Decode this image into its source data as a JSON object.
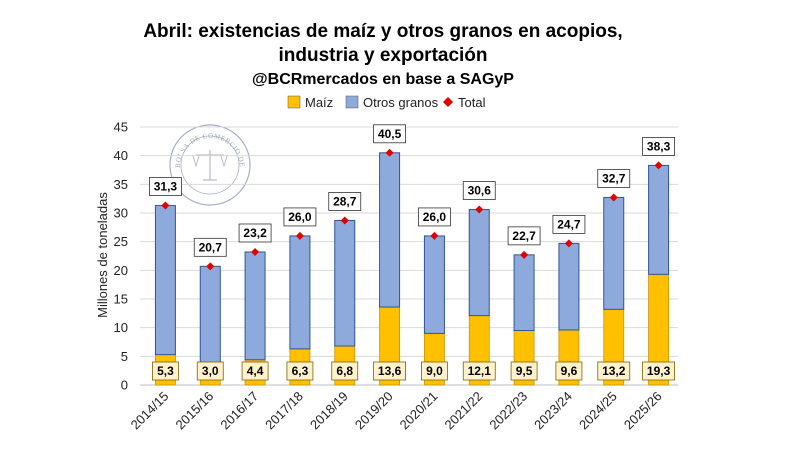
{
  "chart_data": {
    "type": "bar",
    "stacked": true,
    "title_line1": "Abril: existencias de maíz y otros granos en acopios,",
    "title_line2": "industria y exportación",
    "subtitle": "@BCRmercados en base a SAGyP",
    "ylabel": "Millones de toneladas",
    "xlabel": "",
    "ylim": [
      0,
      45
    ],
    "yticks": [
      0,
      5,
      10,
      15,
      20,
      25,
      30,
      35,
      40,
      45
    ],
    "grid": true,
    "legend_position": "top-center",
    "legend": [
      "Maíz",
      "Otros granos",
      "Total"
    ],
    "categories": [
      "2014/15",
      "2015/16",
      "2016/17",
      "2017/18",
      "2018/19",
      "2019/20",
      "2020/21",
      "2021/22",
      "2022/23",
      "2023/24",
      "2024/25",
      "2025/26"
    ],
    "series": [
      {
        "name": "Maíz",
        "color": "#FFC000",
        "values": [
          5.3,
          3.0,
          4.4,
          6.3,
          6.8,
          13.6,
          9.0,
          12.1,
          9.5,
          9.6,
          13.2,
          19.3
        ],
        "labels": [
          "5,3",
          "3,0",
          "4,4",
          "6,3",
          "6,8",
          "13,6",
          "9,0",
          "12,1",
          "9,5",
          "9,6",
          "13,2",
          "19,3"
        ]
      },
      {
        "name": "Otros granos",
        "color": "#8EA9DB",
        "values": [
          26.0,
          17.7,
          18.8,
          19.7,
          21.9,
          26.9,
          17.0,
          18.5,
          13.2,
          15.1,
          19.5,
          19.0
        ]
      },
      {
        "name": "Total",
        "color": "#E00000",
        "marker": "diamond",
        "values": [
          31.3,
          20.7,
          23.2,
          26.0,
          28.7,
          40.5,
          26.0,
          30.6,
          22.7,
          24.7,
          32.7,
          38.3
        ],
        "labels": [
          "31,3",
          "20,7",
          "23,2",
          "26,0",
          "28,7",
          "40,5",
          "26,0",
          "30,6",
          "22,7",
          "24,7",
          "32,7",
          "38,3"
        ]
      }
    ]
  },
  "watermark": {
    "icon": "bolsa-de-comercio-seal-icon",
    "text": "BOLSA DE COMERCIO DE ROSARIO"
  }
}
